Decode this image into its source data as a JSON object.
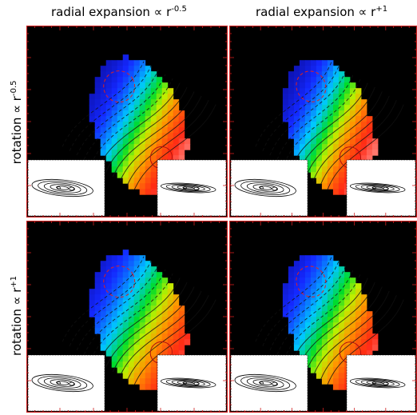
{
  "columns": [
    {
      "base": "radial expansion ∝ r",
      "exp": "-0.5"
    },
    {
      "base": "radial expansion ∝ r",
      "exp": "+1"
    }
  ],
  "rows": [
    {
      "base": "rotation ∝ r",
      "exp": "-0.5"
    },
    {
      "base": "rotation ∝ r",
      "exp": "+1"
    }
  ],
  "colors": {
    "frame": "#d02020",
    "background": "#000000",
    "low": "#1a1aff",
    "mid": "#00d000",
    "high": "#ff2020",
    "negative_contour": "#e02020"
  },
  "panels": [
    {
      "row": 0,
      "col": 0
    },
    {
      "row": 0,
      "col": 1
    },
    {
      "row": 1,
      "col": 0
    },
    {
      "row": 1,
      "col": 1
    }
  ]
}
